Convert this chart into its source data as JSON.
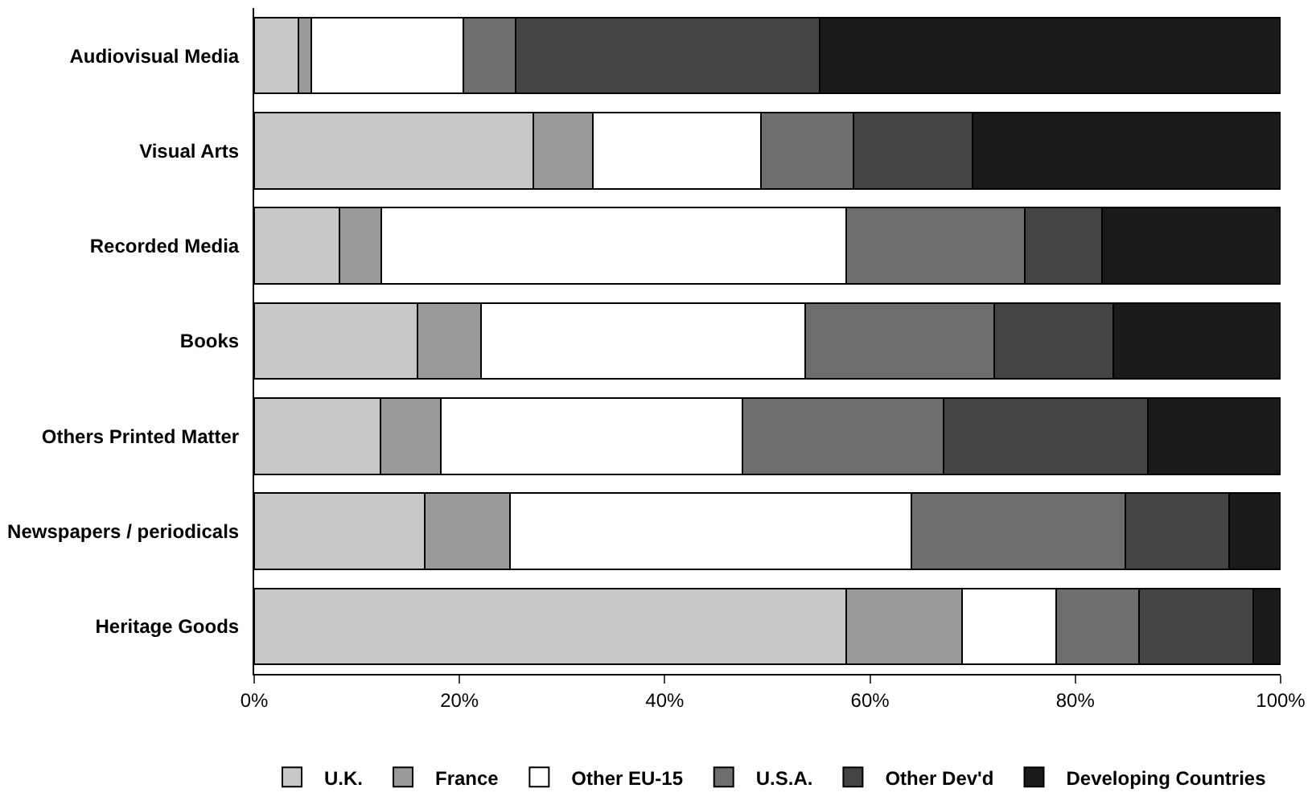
{
  "chart_data": {
    "type": "bar",
    "orientation": "horizontal",
    "stacked": true,
    "categories": [
      "Audiovisual Media",
      "Visual Arts",
      "Recorded Media",
      "Books",
      "Others Printed Matter",
      "Newspapers / periodicals",
      "Heritage Goods"
    ],
    "series": [
      {
        "name": "U.K.",
        "color": "#c8c8c8",
        "values": [
          4.3,
          27.2,
          8.3,
          15.9,
          12.3,
          16.6,
          57.7
        ]
      },
      {
        "name": "France",
        "color": "#9a9a9a",
        "values": [
          1.3,
          5.8,
          4.1,
          6.2,
          5.9,
          8.3,
          11.3
        ]
      },
      {
        "name": "Other EU-15",
        "color": "#ffffff",
        "values": [
          14.8,
          16.4,
          45.3,
          31.6,
          29.4,
          39.1,
          9.1
        ]
      },
      {
        "name": "U.S.A.",
        "color": "#6e6e6e",
        "values": [
          5.1,
          9.0,
          17.4,
          18.4,
          19.6,
          20.9,
          8.1
        ]
      },
      {
        "name": "Other Dev'd",
        "color": "#444444",
        "values": [
          29.6,
          11.6,
          7.5,
          11.6,
          19.9,
          10.1,
          11.1
        ]
      },
      {
        "name": "Developing Countries",
        "color": "#1a1a1a",
        "values": [
          44.9,
          30.0,
          17.4,
          16.3,
          12.9,
          5.0,
          2.7
        ]
      }
    ],
    "xlim": [
      0,
      100
    ],
    "xticks": [
      {
        "value": 0,
        "label": "0%"
      },
      {
        "value": 20,
        "label": "20%"
      },
      {
        "value": 40,
        "label": "40%"
      },
      {
        "value": 60,
        "label": "60%"
      },
      {
        "value": 80,
        "label": "80%"
      },
      {
        "value": 100,
        "label": "100%"
      }
    ],
    "legend": "bottom"
  }
}
